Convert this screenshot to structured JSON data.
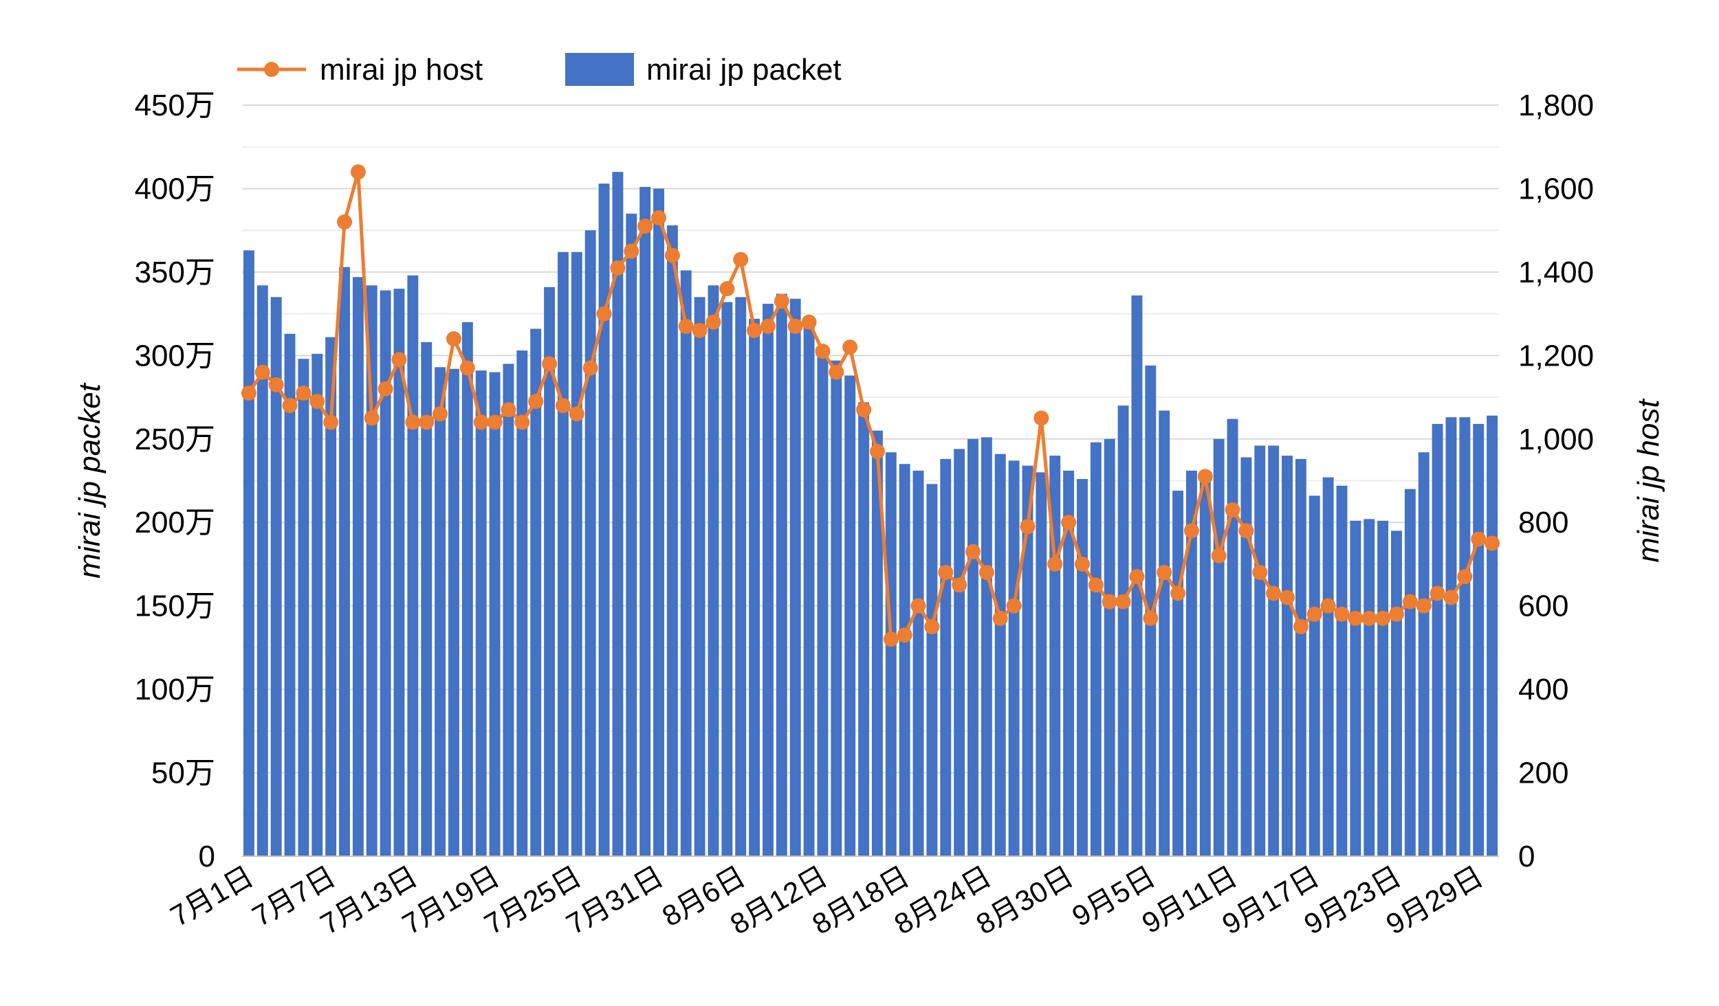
{
  "chart_data": {
    "type": "bar",
    "x_tick_labels": [
      "7月1日",
      "7月7日",
      "7月13日",
      "7月19日",
      "7月25日",
      "7月31日",
      "8月6日",
      "8月12日",
      "8月18日",
      "8月24日",
      "8月30日",
      "9月5日",
      "9月11日",
      "9月17日",
      "9月23日",
      "9月29日"
    ],
    "x_tick_every": 6,
    "ylabel_left": "mirai jp packet",
    "ylabel_right": "mirai jp host",
    "ylim_left": [
      0,
      4500000
    ],
    "ylim_right": [
      0,
      1800
    ],
    "yticks_left": [
      "0",
      "50万",
      "100万",
      "150万",
      "200万",
      "250万",
      "300万",
      "350万",
      "400万",
      "450万"
    ],
    "yticks_right": [
      "0",
      "200",
      "400",
      "600",
      "800",
      "1,000",
      "1,200",
      "1,400",
      "1,600",
      "1,800"
    ],
    "legend_position": "top-left",
    "grid": true,
    "series": [
      {
        "name": "mirai jp packet",
        "type": "bar",
        "axis": "left",
        "color": "#4472C4",
        "values": [
          3630000,
          3420000,
          3350000,
          3130000,
          2980000,
          3010000,
          3110000,
          3530000,
          3470000,
          3420000,
          3390000,
          3400000,
          3480000,
          3080000,
          2930000,
          2920000,
          3200000,
          2910000,
          2900000,
          2950000,
          3030000,
          3160000,
          3410000,
          3620000,
          3620000,
          3750000,
          4030000,
          4100000,
          3850000,
          4010000,
          4000000,
          3780000,
          3510000,
          3350000,
          3420000,
          3320000,
          3350000,
          3220000,
          3310000,
          3370000,
          3340000,
          3180000,
          3000000,
          2970000,
          2880000,
          2720000,
          2550000,
          2420000,
          2350000,
          2310000,
          2230000,
          2380000,
          2440000,
          2500000,
          2510000,
          2410000,
          2370000,
          2340000,
          2300000,
          2400000,
          2310000,
          2260000,
          2480000,
          2500000,
          2700000,
          3360000,
          2940000,
          2670000,
          2190000,
          2310000,
          2300000,
          2500000,
          2620000,
          2390000,
          2460000,
          2460000,
          2400000,
          2380000,
          2160000,
          2270000,
          2220000,
          2010000,
          2020000,
          2010000,
          1950000,
          2200000,
          2420000,
          2590000,
          2630000,
          2630000,
          2590000,
          2640000
        ]
      },
      {
        "name": "mirai jp host",
        "type": "line",
        "axis": "right",
        "color": "#ED7D31",
        "values": [
          1110,
          1160,
          1130,
          1080,
          1110,
          1090,
          1040,
          1520,
          1640,
          1050,
          1120,
          1190,
          1040,
          1040,
          1060,
          1240,
          1170,
          1040,
          1040,
          1070,
          1040,
          1090,
          1180,
          1080,
          1060,
          1170,
          1300,
          1410,
          1450,
          1510,
          1530,
          1440,
          1270,
          1260,
          1280,
          1360,
          1430,
          1260,
          1270,
          1330,
          1270,
          1280,
          1210,
          1160,
          1220,
          1070,
          970,
          520,
          530,
          600,
          550,
          680,
          650,
          730,
          680,
          570,
          600,
          790,
          1050,
          700,
          800,
          700,
          650,
          610,
          610,
          670,
          570,
          680,
          630,
          780,
          910,
          720,
          830,
          780,
          680,
          630,
          620,
          550,
          580,
          600,
          580,
          570,
          570,
          570,
          580,
          610,
          600,
          630,
          620,
          670,
          760,
          750
        ]
      }
    ]
  }
}
